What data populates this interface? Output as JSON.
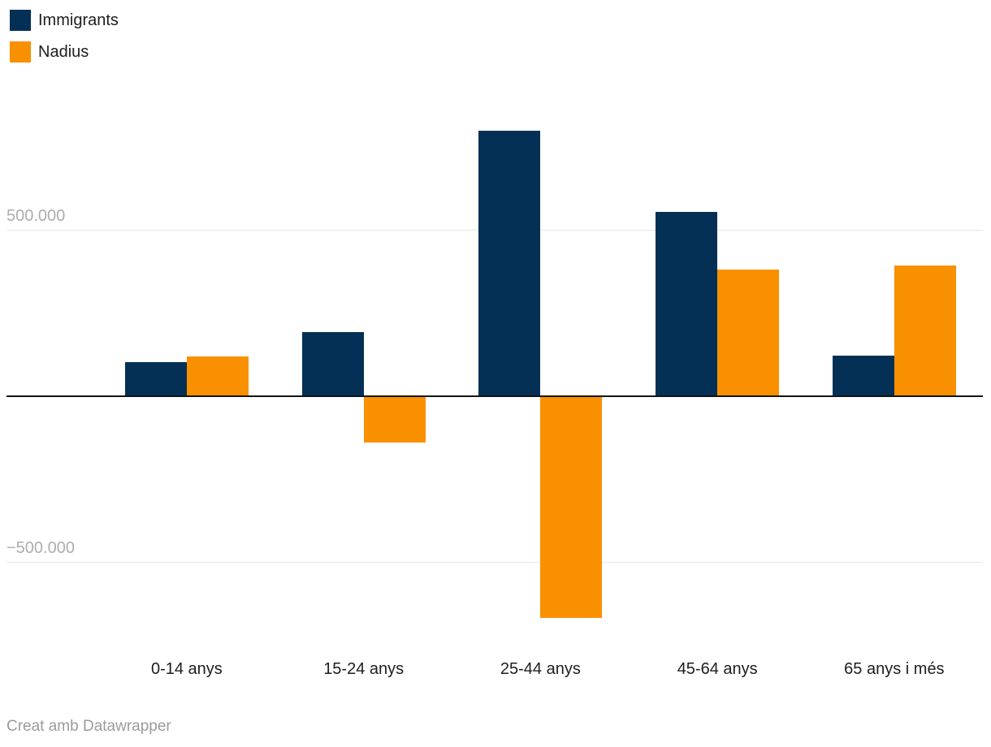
{
  "legend": {
    "items": [
      {
        "label": "Immigrants",
        "color": "#033054"
      },
      {
        "label": "Nadius",
        "color": "#f99000"
      }
    ]
  },
  "chart_data": {
    "type": "bar",
    "categories": [
      "0-14 anys",
      "15-24 anys",
      "25-44 anys",
      "45-64 anys",
      "65 anys i més"
    ],
    "series": [
      {
        "name": "Immigrants",
        "color": "#033054",
        "values": [
          101000,
          191000,
          799000,
          555000,
          121000
        ]
      },
      {
        "name": "Nadius",
        "color": "#f99000",
        "values": [
          119000,
          -141000,
          -669000,
          380000,
          392000
        ]
      }
    ],
    "title": "",
    "xlabel": "",
    "ylabel": "",
    "ylim": [
      -800000,
      850000
    ],
    "grid": "horizontal",
    "legend_position": "top-left",
    "y_ticks": [
      {
        "label": "500.000",
        "value": 500000
      },
      {
        "label": "−500.000",
        "value": -500000
      }
    ],
    "number_format": "dot as thousands separator"
  },
  "colors": {
    "gridline": "#e8e8e8",
    "baseline": "#141414",
    "axis_tick_text": "#adadad",
    "category_text": "#1d1d1d",
    "credit_text": "#9c9c9c",
    "background": "#ffffff"
  },
  "footer": {
    "credit": "Creat amb Datawrapper"
  }
}
